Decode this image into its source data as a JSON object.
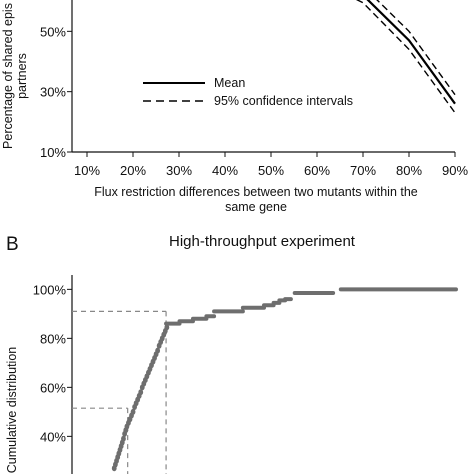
{
  "chart_data": [
    {
      "type": "line",
      "xlabel_line1": "Flux restriction differences between two mutants within the",
      "xlabel_line2": "same gene",
      "ylabel_line1": "Percentage of shared epis",
      "ylabel_line2": "partners",
      "x_ticks": [
        "10%",
        "20%",
        "30%",
        "40%",
        "50%",
        "60%",
        "70%",
        "80%",
        "90%"
      ],
      "y_ticks": [
        "10%",
        "30%",
        "50%"
      ],
      "ylim": [
        10,
        70
      ],
      "xlim": [
        10,
        90
      ],
      "legend": {
        "placement": "bottom-left",
        "mean_label": "Mean",
        "ci_label": "95% confidence intervals"
      },
      "series": [
        {
          "name": "Mean",
          "style": "solid",
          "x": [
            60,
            70,
            80,
            90
          ],
          "y": [
            69.5,
            62,
            47,
            26
          ]
        },
        {
          "name": "95% confidence intervals",
          "style": "dashed",
          "x": [
            60,
            70,
            80,
            90
          ],
          "y": [
            71.5,
            65,
            50,
            29
          ]
        },
        {
          "name": "95% confidence intervals",
          "style": "dashed",
          "x": [
            60,
            70,
            80,
            90
          ],
          "y": [
            67,
            59.5,
            44,
            23
          ]
        }
      ],
      "grid": false
    },
    {
      "type": "scatter",
      "panel_label": "B",
      "title": "High-throughput experiment",
      "ylabel": "Cumulative distribution",
      "y_ticks": [
        "40%",
        "60%",
        "80%",
        "100%"
      ],
      "ylim": [
        23,
        103
      ],
      "grid": false,
      "steps": [
        {
          "x0": 0.245,
          "x1": 0.28,
          "y": 86
        },
        {
          "x0": 0.28,
          "x1": 0.315,
          "y": 87
        },
        {
          "x0": 0.315,
          "x1": 0.35,
          "y": 88
        },
        {
          "x0": 0.35,
          "x1": 0.37,
          "y": 89
        },
        {
          "x0": 0.37,
          "x1": 0.445,
          "y": 91
        },
        {
          "x0": 0.445,
          "x1": 0.5,
          "y": 92.5
        },
        {
          "x0": 0.5,
          "x1": 0.525,
          "y": 93.5
        },
        {
          "x0": 0.525,
          "x1": 0.54,
          "y": 94.5
        },
        {
          "x0": 0.54,
          "x1": 0.555,
          "y": 95.5
        },
        {
          "x0": 0.555,
          "x1": 0.57,
          "y": 96
        },
        {
          "x0": 0.58,
          "x1": 0.68,
          "y": 98.5
        },
        {
          "x0": 0.7,
          "x1": 1.0,
          "y": 100
        }
      ],
      "points": [
        [
          0.11,
          27
        ],
        [
          0.113,
          28.5
        ],
        [
          0.116,
          30
        ],
        [
          0.119,
          31.5
        ],
        [
          0.122,
          33
        ],
        [
          0.125,
          34.5
        ],
        [
          0.128,
          36
        ],
        [
          0.131,
          37.5
        ],
        [
          0.134,
          39
        ],
        [
          0.137,
          41
        ],
        [
          0.14,
          42.5
        ],
        [
          0.143,
          44
        ],
        [
          0.147,
          45.5
        ],
        [
          0.151,
          47
        ],
        [
          0.155,
          48.5
        ],
        [
          0.159,
          50
        ],
        [
          0.163,
          52
        ],
        [
          0.167,
          53.5
        ],
        [
          0.171,
          55
        ],
        [
          0.175,
          56.5
        ],
        [
          0.179,
          58
        ],
        [
          0.183,
          60
        ],
        [
          0.187,
          61.5
        ],
        [
          0.191,
          63
        ],
        [
          0.195,
          64.5
        ],
        [
          0.199,
          66
        ],
        [
          0.203,
          67.5
        ],
        [
          0.207,
          69
        ],
        [
          0.211,
          70.5
        ],
        [
          0.215,
          72
        ],
        [
          0.219,
          73.5
        ],
        [
          0.223,
          75
        ],
        [
          0.227,
          77
        ],
        [
          0.231,
          78.5
        ],
        [
          0.235,
          80
        ],
        [
          0.239,
          81.5
        ],
        [
          0.243,
          83
        ],
        [
          0.247,
          84.5
        ]
      ],
      "guides": [
        {
          "x": 0.245,
          "y": 91
        },
        {
          "x": 0.145,
          "y": 51.5
        }
      ]
    }
  ],
  "colors": {
    "axis": "#111111",
    "series": "#000000",
    "points": "#6e6e6e",
    "guide": "#888888"
  }
}
